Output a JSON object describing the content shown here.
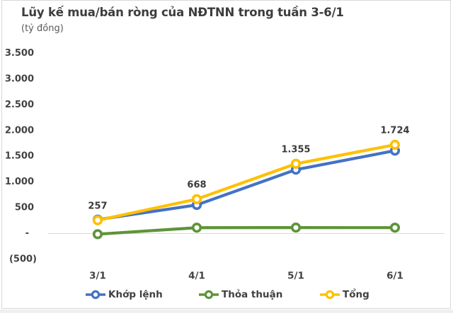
{
  "chart_data": {
    "type": "line",
    "title": "Lũy kế mua/bán ròng của NĐTNN trong tuần 3-6/1",
    "subtitle": "(tỷ đồng)",
    "categories": [
      "3/1",
      "4/1",
      "5/1",
      "6/1"
    ],
    "y_axis": {
      "min": -500,
      "max": 3500,
      "step": 500,
      "tick_labels": [
        "3.500",
        "3.000",
        "2.500",
        "2.000",
        "1.500",
        "1.000",
        "500",
        "-",
        "(500)"
      ],
      "tick_values": [
        3500,
        3000,
        2500,
        2000,
        1500,
        1000,
        500,
        0,
        -500
      ]
    },
    "grid": "zero-line-only",
    "legend_position": "bottom",
    "series": [
      {
        "key": "khop-lenh",
        "name": "Khớp lệnh",
        "color": "#4472C4",
        "values": [
          270,
          555,
          1240,
          1610
        ],
        "data_labels": null
      },
      {
        "key": "thoa-thuan",
        "name": "Thỏa thuận",
        "color": "#5E9438",
        "values": [
          -13,
          113,
          115,
          114
        ],
        "data_labels": null
      },
      {
        "key": "tong",
        "name": "Tổng",
        "color": "#FFC000",
        "values": [
          257,
          668,
          1355,
          1724
        ],
        "data_labels": [
          "257",
          "668",
          "1.355",
          "1.724"
        ]
      }
    ],
    "colors": {
      "axis_line": "#D9D9D9",
      "tick_text": "#424242",
      "data_label_text": "#3A3A3A",
      "border": "#D9D9D9"
    }
  }
}
